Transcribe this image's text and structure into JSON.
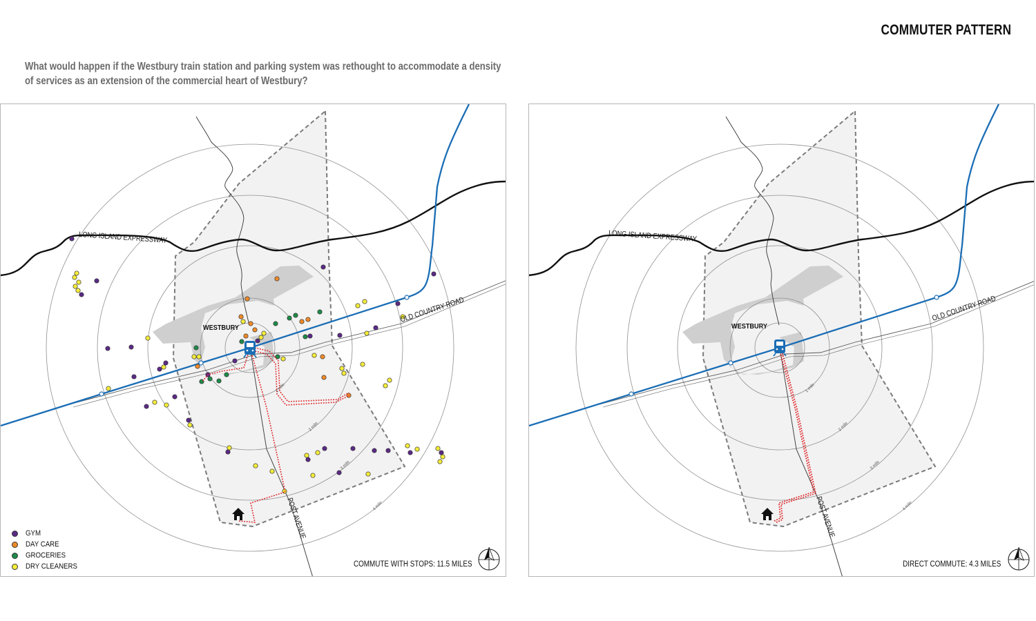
{
  "title": "COMMUTER PATTERN",
  "question": "What would happen if the Westbury train station and parking system was rethought to accommodate a density of services as an extension of the commercial heart of Westbury?",
  "map_labels": {
    "expressway": "LONG ISLAND EXPRESSWAY",
    "old_country_road": "OLD COUNTRY ROAD",
    "post_avenue": "POST AVENUE",
    "town": "WESTBURY",
    "ring_1": "1 mile",
    "ring_2": "2 mile",
    "ring_3": "3 mile",
    "ring_4": "4 mile"
  },
  "legend": [
    {
      "label": "GYM",
      "color": "#5b2a86"
    },
    {
      "label": "DAY CARE",
      "color": "#ee8a2a"
    },
    {
      "label": "GROCERIES",
      "color": "#1f8a4a"
    },
    {
      "label": "DRY CLEANERS",
      "color": "#f4ec3a"
    }
  ],
  "captions": {
    "left": "COMMUTE WITH STOPS: 11.5 MILES",
    "right": "DIRECT COMMUTE: 4.3 MILES"
  },
  "colors": {
    "rail": "#1a6db5",
    "route": "#e0262a",
    "town": "#cfcfcf",
    "district": "#f2f2f2"
  },
  "icons": [
    "home-icon",
    "train-station-icon",
    "north-arrow-icon"
  ]
}
